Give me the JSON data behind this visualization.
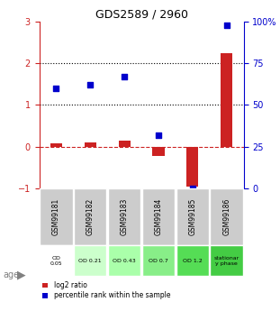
{
  "title": "GDS2589 / 2960",
  "samples": [
    "GSM99181",
    "GSM99182",
    "GSM99183",
    "GSM99184",
    "GSM99185",
    "GSM99186"
  ],
  "log2_ratio": [
    0.07,
    0.1,
    0.15,
    -0.22,
    -0.95,
    2.25
  ],
  "percentile_rank": [
    1.6,
    1.65,
    1.75,
    0.35,
    -1.0,
    2.92
  ],
  "percentile_rank_pct": [
    60,
    62,
    67,
    32,
    0,
    98
  ],
  "ylim_left": [
    -1,
    3
  ],
  "ylim_right": [
    0,
    100
  ],
  "yticks_left": [
    -1,
    0,
    1,
    2,
    3
  ],
  "yticks_right": [
    0,
    25,
    50,
    75,
    100
  ],
  "hlines_y": [
    0,
    1,
    2
  ],
  "hlines_styles": [
    "dashed",
    "dotted",
    "dotted"
  ],
  "hlines_colors": [
    "#cc2222",
    "#000000",
    "#000000"
  ],
  "bar_color": "#cc2222",
  "scatter_color": "#0000cc",
  "age_labels": [
    "OD\n0.05",
    "OD 0.21",
    "OD 0.43",
    "OD 0.7",
    "OD 1.2",
    "stationar\ny phase"
  ],
  "age_bg_colors": [
    "#ffffff",
    "#ccffcc",
    "#99ee99",
    "#66dd66",
    "#33cc33",
    "#22bb22"
  ],
  "sample_bg_color": "#cccccc",
  "legend_items": [
    {
      "label": "log2 ratio",
      "color": "#cc2222"
    },
    {
      "label": "percentile rank within the sample",
      "color": "#0000cc"
    }
  ]
}
